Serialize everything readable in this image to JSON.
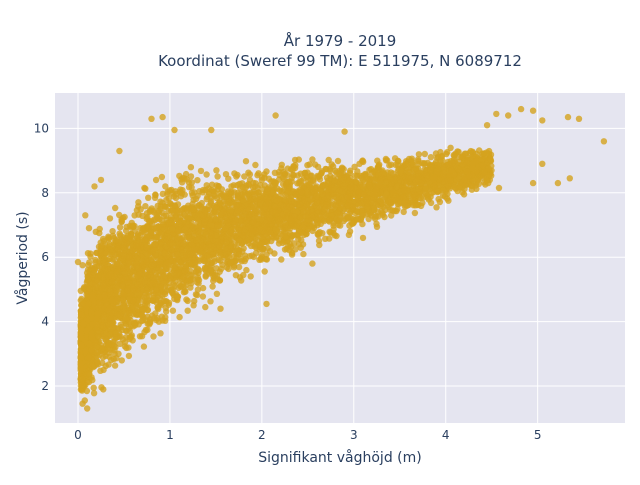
{
  "chart_data": {
    "type": "scatter",
    "title_line1": "År 1979 - 2019",
    "title_line2": "Koordinat (Sweref 99 TM): E 511975, N 6089712",
    "xlabel": "Signifikant våghöjd (m)",
    "ylabel": "Vågperiod (s)",
    "xlim": [
      -0.25,
      5.95
    ],
    "ylim": [
      0.85,
      11.1
    ],
    "xticks": [
      0,
      1,
      2,
      3,
      4,
      5
    ],
    "yticks": [
      2,
      4,
      6,
      8,
      10
    ],
    "grid": true,
    "legend": "none",
    "colors": {
      "marker": "#d4a21e",
      "plot_bg": "#e5e5f0",
      "grid": "#ffffff",
      "text": "#2a3f5f"
    },
    "marker_opacity": 0.8,
    "density_envelope": {
      "x": [
        0.05,
        0.1,
        0.2,
        0.3,
        0.5,
        0.75,
        1.0,
        1.25,
        1.5,
        2.0,
        2.5,
        3.0,
        3.5,
        4.0,
        4.5
      ],
      "y_lower": [
        1.3,
        1.3,
        1.5,
        1.9,
        2.5,
        3.0,
        3.5,
        4.0,
        4.5,
        5.3,
        6.0,
        6.6,
        7.1,
        7.6,
        8.1
      ],
      "y_upper": [
        5.2,
        6.5,
        7.2,
        7.6,
        8.2,
        8.7,
        9.0,
        9.2,
        9.3,
        9.4,
        9.4,
        9.3,
        9.4,
        9.5,
        9.6
      ]
    },
    "outlier_points": [
      {
        "x": 5.72,
        "y": 9.6
      },
      {
        "x": 5.45,
        "y": 10.3
      },
      {
        "x": 5.33,
        "y": 10.35
      },
      {
        "x": 5.35,
        "y": 8.45
      },
      {
        "x": 5.22,
        "y": 8.3
      },
      {
        "x": 5.05,
        "y": 10.25
      },
      {
        "x": 5.05,
        "y": 8.9
      },
      {
        "x": 4.95,
        "y": 10.55
      },
      {
        "x": 4.82,
        "y": 10.6
      },
      {
        "x": 4.68,
        "y": 10.4
      },
      {
        "x": 4.55,
        "y": 10.45
      },
      {
        "x": 4.95,
        "y": 8.3
      },
      {
        "x": 4.58,
        "y": 8.15
      },
      {
        "x": 4.45,
        "y": 10.1
      },
      {
        "x": 0.8,
        "y": 10.3
      },
      {
        "x": 0.92,
        "y": 10.35
      },
      {
        "x": 2.15,
        "y": 10.4
      },
      {
        "x": 1.45,
        "y": 9.95
      },
      {
        "x": 2.9,
        "y": 9.9
      },
      {
        "x": 1.05,
        "y": 9.95
      },
      {
        "x": 0.45,
        "y": 9.3
      },
      {
        "x": 0.0,
        "y": 5.85
      },
      {
        "x": 0.05,
        "y": 5.75
      },
      {
        "x": 0.08,
        "y": 7.3
      },
      {
        "x": 0.12,
        "y": 6.9
      },
      {
        "x": 0.18,
        "y": 8.2
      },
      {
        "x": 0.25,
        "y": 8.4
      },
      {
        "x": 0.05,
        "y": 1.45
      },
      {
        "x": 0.1,
        "y": 1.3
      },
      {
        "x": 2.05,
        "y": 4.55
      },
      {
        "x": 2.55,
        "y": 5.8
      },
      {
        "x": 3.1,
        "y": 6.6
      },
      {
        "x": 1.55,
        "y": 4.4
      },
      {
        "x": 3.9,
        "y": 7.55
      },
      {
        "x": 4.2,
        "y": 7.95
      }
    ]
  }
}
